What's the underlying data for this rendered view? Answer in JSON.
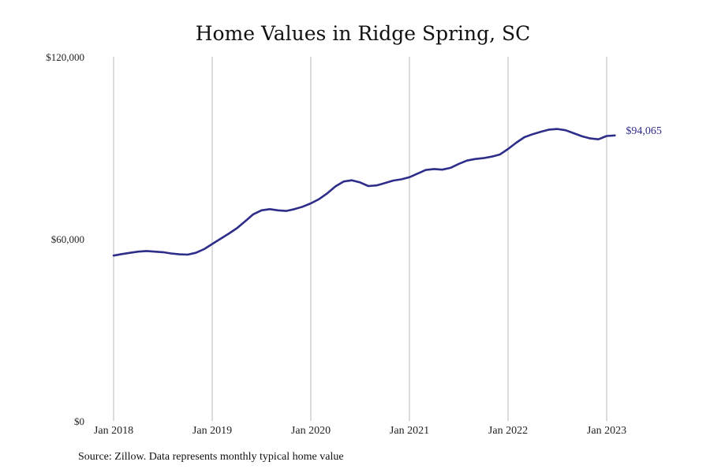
{
  "chart_data": {
    "type": "line",
    "title": "Home Values in Ridge Spring, SC",
    "xlabel": "",
    "ylabel": "",
    "ylim": [
      0,
      120000
    ],
    "yticks": [
      {
        "value": 0,
        "label": "$0"
      },
      {
        "value": 60000,
        "label": "$60,000"
      },
      {
        "value": 120000,
        "label": "$120,000"
      }
    ],
    "xticks": [
      {
        "value": "2018-01",
        "label": "Jan 2018"
      },
      {
        "value": "2019-01",
        "label": "Jan 2019"
      },
      {
        "value": "2020-01",
        "label": "Jan 2020"
      },
      {
        "value": "2021-01",
        "label": "Jan 2021"
      },
      {
        "value": "2022-01",
        "label": "Jan 2022"
      },
      {
        "value": "2023-01",
        "label": "Jan 2023"
      }
    ],
    "grid": {
      "vertical": true,
      "horizontal": false
    },
    "series": [
      {
        "color": "#2e2d8a",
        "end_label": "$94,065",
        "x": [
          "2018-01",
          "2018-02",
          "2018-03",
          "2018-04",
          "2018-05",
          "2018-06",
          "2018-07",
          "2018-08",
          "2018-09",
          "2018-10",
          "2018-11",
          "2018-12",
          "2019-01",
          "2019-02",
          "2019-03",
          "2019-04",
          "2019-05",
          "2019-06",
          "2019-07",
          "2019-08",
          "2019-09",
          "2019-10",
          "2019-11",
          "2019-12",
          "2020-01",
          "2020-02",
          "2020-03",
          "2020-04",
          "2020-05",
          "2020-06",
          "2020-07",
          "2020-08",
          "2020-09",
          "2020-10",
          "2020-11",
          "2020-12",
          "2021-01",
          "2021-02",
          "2021-03",
          "2021-04",
          "2021-05",
          "2021-06",
          "2021-07",
          "2021-08",
          "2021-09",
          "2021-10",
          "2021-11",
          "2021-12",
          "2022-01",
          "2022-02",
          "2022-03",
          "2022-04",
          "2022-05",
          "2022-06",
          "2022-07",
          "2022-08",
          "2022-09",
          "2022-10",
          "2022-11",
          "2022-12",
          "2023-01",
          "2023-02"
        ],
        "values": [
          54500,
          55000,
          55400,
          55800,
          56000,
          55800,
          55600,
          55200,
          54900,
          54800,
          55400,
          56600,
          58300,
          60000,
          61700,
          63500,
          65800,
          68100,
          69400,
          69800,
          69400,
          69200,
          69800,
          70600,
          71700,
          73100,
          75000,
          77300,
          78900,
          79300,
          78600,
          77400,
          77600,
          78400,
          79200,
          79600,
          80300,
          81500,
          82700,
          83000,
          82800,
          83400,
          84700,
          85800,
          86300,
          86600,
          87100,
          87800,
          89600,
          91700,
          93500,
          94500,
          95300,
          96000,
          96200,
          95800,
          94800,
          93800,
          93100,
          92800,
          93900,
          94065
        ]
      }
    ]
  },
  "source": "Source: Zillow. Data represents monthly typical home value"
}
